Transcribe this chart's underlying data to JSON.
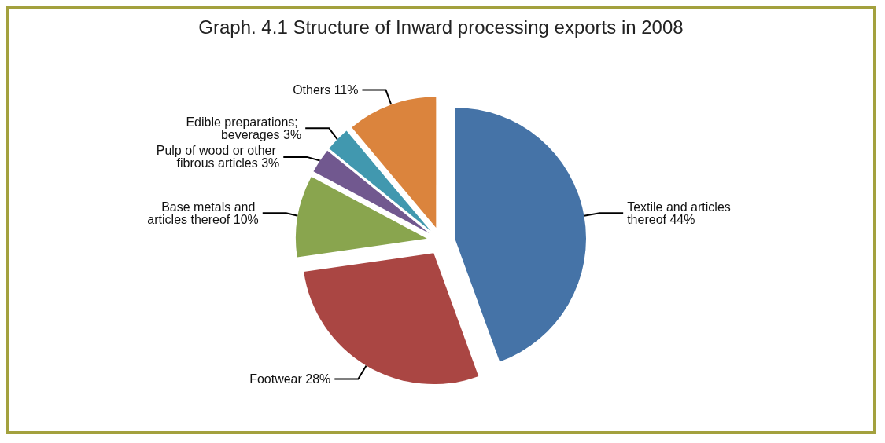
{
  "chart_data": {
    "type": "pie",
    "title": "Graph. 4.1 Structure of Inward processing exports in 2008",
    "categories": [
      "Textile and articles thereof",
      "Footwear",
      "Base metals and articles thereof",
      "Pulp of wood or other fibrous articles",
      "Edible preparations; beverages",
      "Others"
    ],
    "values": [
      44,
      28,
      10,
      3,
      3,
      11
    ],
    "value_labels": [
      "44%",
      "28%",
      "10%",
      "3%",
      "3%",
      "11%"
    ],
    "colors": [
      "#4573a7",
      "#aa4643",
      "#89a54e",
      "#71588f",
      "#4198af",
      "#db843d"
    ]
  }
}
